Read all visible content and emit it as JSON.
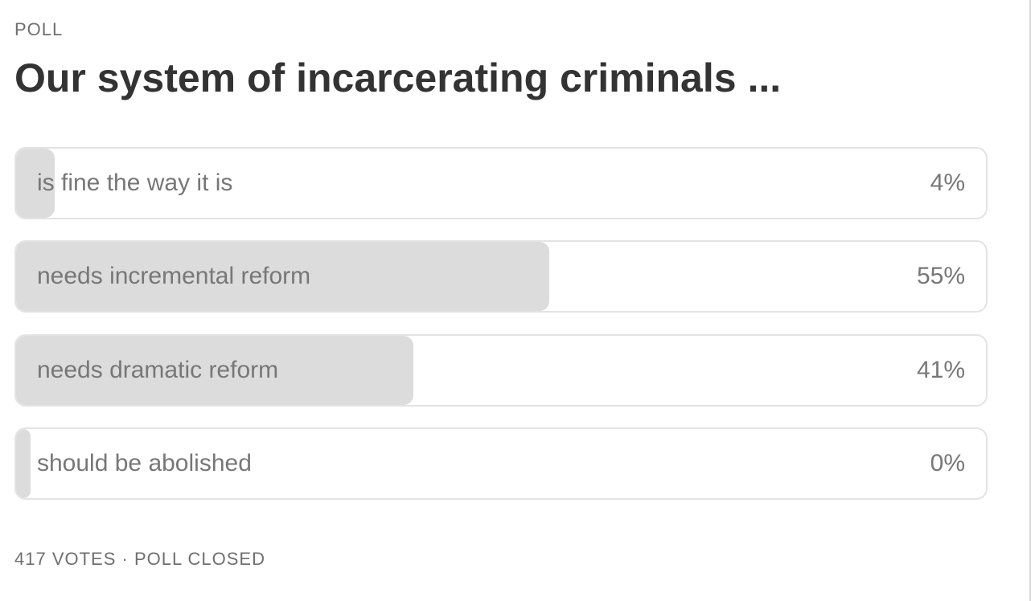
{
  "poll": {
    "label": "POLL",
    "question": "Our system of incarcerating criminals ...",
    "options": [
      {
        "text": "is fine the way it is",
        "percent": 4,
        "percent_label": "4%"
      },
      {
        "text": "needs incremental reform",
        "percent": 55,
        "percent_label": "55%"
      },
      {
        "text": "needs dramatic reform",
        "percent": 41,
        "percent_label": "41%"
      },
      {
        "text": "should be abolished",
        "percent": 0,
        "percent_label": "0%"
      }
    ],
    "footer": "417 VOTES · POLL CLOSED"
  }
}
